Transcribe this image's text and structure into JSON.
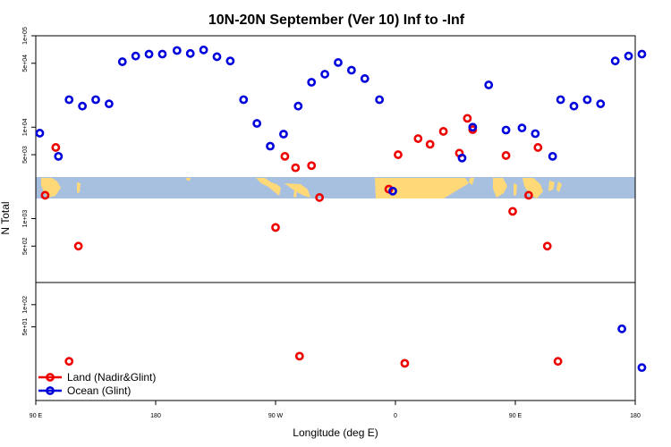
{
  "chart_data": {
    "type": "scatter",
    "title": "10N-20N September (Ver 10)   Inf to -Inf",
    "xlabel": "Longitude (deg E)",
    "ylabel": "N Total",
    "x_ticks": [
      {
        "value": 90,
        "label": "90 E"
      },
      {
        "value": 180,
        "label": "180"
      },
      {
        "value": 270,
        "label": "90 W"
      },
      {
        "value": 360,
        "label": "0"
      },
      {
        "value": 450,
        "label": "90 E"
      },
      {
        "value": 540,
        "label": "180"
      }
    ],
    "xlim": [
      90,
      540
    ],
    "y_scale": "log",
    "upper_panel": {
      "ylim": [
        200,
        100000
      ],
      "y_ticks": [
        {
          "value": 500,
          "label": "5e+02"
        },
        {
          "value": 1000,
          "label": "1e+03"
        },
        {
          "value": 5000,
          "label": "5e+03"
        },
        {
          "value": 10000,
          "label": "1e+04"
        },
        {
          "value": 50000,
          "label": "5e+04"
        },
        {
          "value": 100000,
          "label": "1e+05"
        }
      ]
    },
    "lower_panel": {
      "ylim": [
        5,
        200
      ],
      "y_ticks": [
        {
          "value": 50,
          "label": "5e+01"
        },
        {
          "value": 100,
          "label": "1e+02"
        }
      ]
    },
    "series": [
      {
        "name": "Land (Nadir&Glint)",
        "color": "#ee0000",
        "points": [
          [
            97,
            1800
          ],
          [
            105,
            6000
          ],
          [
            115,
            17
          ],
          [
            122,
            500
          ],
          [
            270,
            800
          ],
          [
            277,
            4800
          ],
          [
            285,
            3600
          ],
          [
            288,
            20
          ],
          [
            297,
            3800
          ],
          [
            303,
            1700
          ],
          [
            355,
            2100
          ],
          [
            362,
            5000
          ],
          [
            367,
            16
          ],
          [
            377,
            7500
          ],
          [
            386,
            6500
          ],
          [
            396,
            9000
          ],
          [
            408,
            5200
          ],
          [
            414,
            12500
          ],
          [
            418,
            9400
          ],
          [
            443,
            4900
          ],
          [
            448,
            1200
          ],
          [
            460,
            1800
          ],
          [
            467,
            6000
          ],
          [
            474,
            500
          ],
          [
            482,
            17
          ]
        ]
      },
      {
        "name": "Ocean (Glint)",
        "color": "#0000dd",
        "points": [
          [
            93,
            8600
          ],
          [
            107,
            4800
          ],
          [
            115,
            20000
          ],
          [
            125,
            17000
          ],
          [
            135,
            20000
          ],
          [
            145,
            18000
          ],
          [
            155,
            52000
          ],
          [
            165,
            60000
          ],
          [
            175,
            63000
          ],
          [
            185,
            63000
          ],
          [
            196,
            69000
          ],
          [
            206,
            64000
          ],
          [
            216,
            70000
          ],
          [
            226,
            59000
          ],
          [
            236,
            53000
          ],
          [
            246,
            20000
          ],
          [
            256,
            11000
          ],
          [
            266,
            6200
          ],
          [
            276,
            8400
          ],
          [
            287,
            17000
          ],
          [
            297,
            31000
          ],
          [
            307,
            38000
          ],
          [
            317,
            51000
          ],
          [
            327,
            42000
          ],
          [
            337,
            34000
          ],
          [
            348,
            20000
          ],
          [
            358,
            2000
          ],
          [
            410,
            4600
          ],
          [
            418,
            10000
          ],
          [
            430,
            29000
          ],
          [
            443,
            9300
          ],
          [
            455,
            9800
          ],
          [
            465,
            8500
          ],
          [
            478,
            4800
          ],
          [
            484,
            20000
          ],
          [
            494,
            17000
          ],
          [
            504,
            20000
          ],
          [
            514,
            18000
          ],
          [
            525,
            53000
          ],
          [
            535,
            60000
          ],
          [
            545,
            63000
          ],
          [
            545,
            14
          ],
          [
            530,
            47
          ]
        ]
      }
    ],
    "legend": {
      "placement": "bottom-left",
      "entries": [
        {
          "label": "Land (Nadir&Glint)",
          "color": "#ee0000"
        },
        {
          "label": "Ocean (Glint)",
          "color": "#0000dd"
        }
      ]
    },
    "background_map": {
      "ocean_color": "#a8c0e0",
      "land_color": "#ffd878"
    },
    "grid": false
  }
}
